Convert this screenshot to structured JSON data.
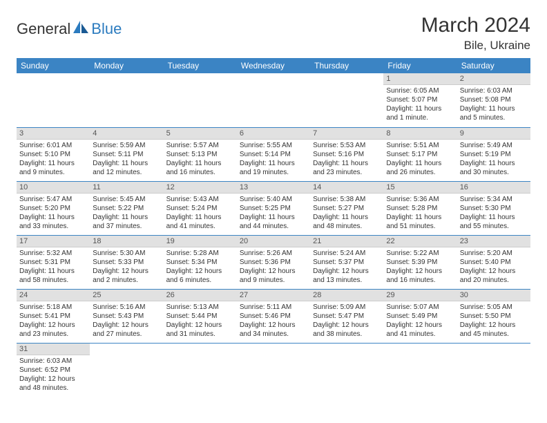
{
  "brand": {
    "general": "General",
    "blue": "Blue"
  },
  "title": "March 2024",
  "location": "Bile, Ukraine",
  "colors": {
    "header_bg": "#3b84c4",
    "header_fg": "#ffffff",
    "daynum_bg": "#e1e1e1",
    "rule": "#3b84c4",
    "text": "#333333"
  },
  "weekdays": [
    "Sunday",
    "Monday",
    "Tuesday",
    "Wednesday",
    "Thursday",
    "Friday",
    "Saturday"
  ],
  "weeks": [
    [
      null,
      null,
      null,
      null,
      null,
      {
        "n": "1",
        "sr": "Sunrise: 6:05 AM",
        "ss": "Sunset: 5:07 PM",
        "d1": "Daylight: 11 hours",
        "d2": "and 1 minute."
      },
      {
        "n": "2",
        "sr": "Sunrise: 6:03 AM",
        "ss": "Sunset: 5:08 PM",
        "d1": "Daylight: 11 hours",
        "d2": "and 5 minutes."
      }
    ],
    [
      {
        "n": "3",
        "sr": "Sunrise: 6:01 AM",
        "ss": "Sunset: 5:10 PM",
        "d1": "Daylight: 11 hours",
        "d2": "and 9 minutes."
      },
      {
        "n": "4",
        "sr": "Sunrise: 5:59 AM",
        "ss": "Sunset: 5:11 PM",
        "d1": "Daylight: 11 hours",
        "d2": "and 12 minutes."
      },
      {
        "n": "5",
        "sr": "Sunrise: 5:57 AM",
        "ss": "Sunset: 5:13 PM",
        "d1": "Daylight: 11 hours",
        "d2": "and 16 minutes."
      },
      {
        "n": "6",
        "sr": "Sunrise: 5:55 AM",
        "ss": "Sunset: 5:14 PM",
        "d1": "Daylight: 11 hours",
        "d2": "and 19 minutes."
      },
      {
        "n": "7",
        "sr": "Sunrise: 5:53 AM",
        "ss": "Sunset: 5:16 PM",
        "d1": "Daylight: 11 hours",
        "d2": "and 23 minutes."
      },
      {
        "n": "8",
        "sr": "Sunrise: 5:51 AM",
        "ss": "Sunset: 5:17 PM",
        "d1": "Daylight: 11 hours",
        "d2": "and 26 minutes."
      },
      {
        "n": "9",
        "sr": "Sunrise: 5:49 AM",
        "ss": "Sunset: 5:19 PM",
        "d1": "Daylight: 11 hours",
        "d2": "and 30 minutes."
      }
    ],
    [
      {
        "n": "10",
        "sr": "Sunrise: 5:47 AM",
        "ss": "Sunset: 5:20 PM",
        "d1": "Daylight: 11 hours",
        "d2": "and 33 minutes."
      },
      {
        "n": "11",
        "sr": "Sunrise: 5:45 AM",
        "ss": "Sunset: 5:22 PM",
        "d1": "Daylight: 11 hours",
        "d2": "and 37 minutes."
      },
      {
        "n": "12",
        "sr": "Sunrise: 5:43 AM",
        "ss": "Sunset: 5:24 PM",
        "d1": "Daylight: 11 hours",
        "d2": "and 41 minutes."
      },
      {
        "n": "13",
        "sr": "Sunrise: 5:40 AM",
        "ss": "Sunset: 5:25 PM",
        "d1": "Daylight: 11 hours",
        "d2": "and 44 minutes."
      },
      {
        "n": "14",
        "sr": "Sunrise: 5:38 AM",
        "ss": "Sunset: 5:27 PM",
        "d1": "Daylight: 11 hours",
        "d2": "and 48 minutes."
      },
      {
        "n": "15",
        "sr": "Sunrise: 5:36 AM",
        "ss": "Sunset: 5:28 PM",
        "d1": "Daylight: 11 hours",
        "d2": "and 51 minutes."
      },
      {
        "n": "16",
        "sr": "Sunrise: 5:34 AM",
        "ss": "Sunset: 5:30 PM",
        "d1": "Daylight: 11 hours",
        "d2": "and 55 minutes."
      }
    ],
    [
      {
        "n": "17",
        "sr": "Sunrise: 5:32 AM",
        "ss": "Sunset: 5:31 PM",
        "d1": "Daylight: 11 hours",
        "d2": "and 58 minutes."
      },
      {
        "n": "18",
        "sr": "Sunrise: 5:30 AM",
        "ss": "Sunset: 5:33 PM",
        "d1": "Daylight: 12 hours",
        "d2": "and 2 minutes."
      },
      {
        "n": "19",
        "sr": "Sunrise: 5:28 AM",
        "ss": "Sunset: 5:34 PM",
        "d1": "Daylight: 12 hours",
        "d2": "and 6 minutes."
      },
      {
        "n": "20",
        "sr": "Sunrise: 5:26 AM",
        "ss": "Sunset: 5:36 PM",
        "d1": "Daylight: 12 hours",
        "d2": "and 9 minutes."
      },
      {
        "n": "21",
        "sr": "Sunrise: 5:24 AM",
        "ss": "Sunset: 5:37 PM",
        "d1": "Daylight: 12 hours",
        "d2": "and 13 minutes."
      },
      {
        "n": "22",
        "sr": "Sunrise: 5:22 AM",
        "ss": "Sunset: 5:39 PM",
        "d1": "Daylight: 12 hours",
        "d2": "and 16 minutes."
      },
      {
        "n": "23",
        "sr": "Sunrise: 5:20 AM",
        "ss": "Sunset: 5:40 PM",
        "d1": "Daylight: 12 hours",
        "d2": "and 20 minutes."
      }
    ],
    [
      {
        "n": "24",
        "sr": "Sunrise: 5:18 AM",
        "ss": "Sunset: 5:41 PM",
        "d1": "Daylight: 12 hours",
        "d2": "and 23 minutes."
      },
      {
        "n": "25",
        "sr": "Sunrise: 5:16 AM",
        "ss": "Sunset: 5:43 PM",
        "d1": "Daylight: 12 hours",
        "d2": "and 27 minutes."
      },
      {
        "n": "26",
        "sr": "Sunrise: 5:13 AM",
        "ss": "Sunset: 5:44 PM",
        "d1": "Daylight: 12 hours",
        "d2": "and 31 minutes."
      },
      {
        "n": "27",
        "sr": "Sunrise: 5:11 AM",
        "ss": "Sunset: 5:46 PM",
        "d1": "Daylight: 12 hours",
        "d2": "and 34 minutes."
      },
      {
        "n": "28",
        "sr": "Sunrise: 5:09 AM",
        "ss": "Sunset: 5:47 PM",
        "d1": "Daylight: 12 hours",
        "d2": "and 38 minutes."
      },
      {
        "n": "29",
        "sr": "Sunrise: 5:07 AM",
        "ss": "Sunset: 5:49 PM",
        "d1": "Daylight: 12 hours",
        "d2": "and 41 minutes."
      },
      {
        "n": "30",
        "sr": "Sunrise: 5:05 AM",
        "ss": "Sunset: 5:50 PM",
        "d1": "Daylight: 12 hours",
        "d2": "and 45 minutes."
      }
    ],
    [
      {
        "n": "31",
        "sr": "Sunrise: 6:03 AM",
        "ss": "Sunset: 6:52 PM",
        "d1": "Daylight: 12 hours",
        "d2": "and 48 minutes."
      },
      null,
      null,
      null,
      null,
      null,
      null
    ]
  ]
}
